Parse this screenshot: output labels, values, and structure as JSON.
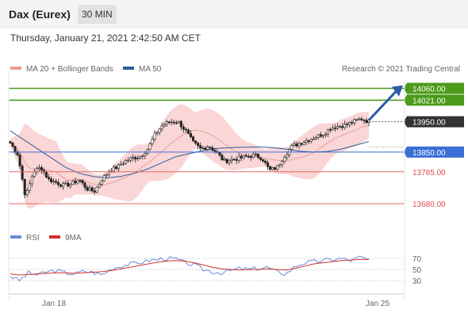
{
  "header": {
    "title": "Dax (Eurex)",
    "interval": "30 MIN",
    "timestamp": "Thursday, January 21, 2021 2:42:50 AM CET"
  },
  "legend": {
    "ma20": "MA 20 + Bollinger Bands",
    "ma50": "MA 50",
    "credit": "Research © 2021 Trading Central"
  },
  "rsi_legend": {
    "rsi": "RSI",
    "ma9": "9MA"
  },
  "colors": {
    "candle": "#222222",
    "bollinger_fill": "#f8c8c8",
    "ma20": "#e8a0a0",
    "ma50": "#2e5d9a",
    "resistance": "#4c9a1a",
    "support": "#e46a6a",
    "pivot": "#3a6fd8",
    "arrow": "#2a5da8",
    "rsi": "#6a8ad8",
    "rsi_ma": "#d03030"
  },
  "chart_data": {
    "type": "candlestick",
    "title": "Dax (Eurex)",
    "x_ticks": [
      "Jan 18",
      "Jan 25"
    ],
    "y_range": [
      13620,
      14090
    ],
    "current_price": {
      "label": "13950.00",
      "value": 13950
    },
    "levels": [
      {
        "label": "14060.00",
        "value": 14060,
        "kind": "resistance"
      },
      {
        "label": "14021.00",
        "value": 14021,
        "kind": "resistance"
      },
      {
        "label": "13850.00",
        "value": 13850,
        "kind": "pivot"
      },
      {
        "label": "13785.00",
        "value": 13785,
        "kind": "support"
      },
      {
        "label": "13680.00",
        "value": 13680,
        "kind": "support"
      }
    ],
    "close_path": [
      13880,
      13842,
      13700,
      13785,
      13800,
      13760,
      13750,
      13740,
      13745,
      13760,
      13730,
      13720,
      13760,
      13790,
      13800,
      13820,
      13830,
      13835,
      13860,
      13910,
      13940,
      13950,
      13950,
      13920,
      13880,
      13860,
      13870,
      13850,
      13820,
      13825,
      13830,
      13835,
      13840,
      13830,
      13790,
      13800,
      13840,
      13870,
      13880,
      13890,
      13900,
      13910,
      13930,
      13935,
      13940,
      13950,
      13960,
      13950
    ],
    "ma50_path": [
      13920,
      13890,
      13860,
      13830,
      13800,
      13780,
      13770,
      13765,
      13770,
      13780,
      13795,
      13815,
      13835,
      13845,
      13855,
      13862,
      13865,
      13866,
      13867,
      13865,
      13860,
      13853,
      13850,
      13852,
      13860,
      13872,
      13885
    ],
    "rsi": {
      "ticks": [
        "70",
        "50",
        "30"
      ],
      "range": [
        10,
        90
      ],
      "values": [
        38,
        30,
        44,
        40,
        46,
        48,
        44,
        42,
        47,
        45,
        40,
        52,
        56,
        60,
        62,
        66,
        68,
        70,
        69,
        62,
        58,
        50,
        46,
        44,
        48,
        52,
        50,
        52,
        54,
        45,
        42,
        56,
        62,
        64,
        66,
        68,
        70,
        66,
        72,
        68
      ],
      "ma9": [
        42,
        40,
        41,
        42,
        43,
        44,
        44,
        43,
        44,
        45,
        46,
        48,
        51,
        54,
        57,
        60,
        63,
        65,
        66,
        65,
        62,
        58,
        54,
        51,
        50,
        49,
        50,
        50,
        51,
        50,
        49,
        52,
        56,
        60,
        62,
        64,
        66,
        67,
        68,
        68
      ]
    }
  }
}
